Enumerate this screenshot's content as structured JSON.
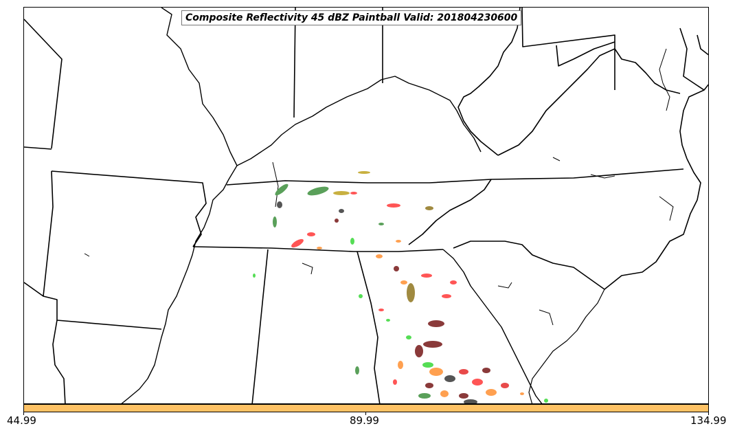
{
  "title": "Composite Reflectivity 45 dBZ Paintball Valid: 201804230600",
  "colorbar": {
    "color": "#fec265",
    "ticks": [
      "44.99",
      "89.99",
      "134.99"
    ],
    "range": [
      44.99,
      134.99
    ]
  },
  "paintball_colors": [
    "#e84a4a",
    "#ff5555",
    "#55dd55",
    "#5aa05a",
    "#ffa050",
    "#c8b040",
    "#8a3a3a",
    "#555555",
    "#a08a40",
    "#ff9a3a"
  ]
}
